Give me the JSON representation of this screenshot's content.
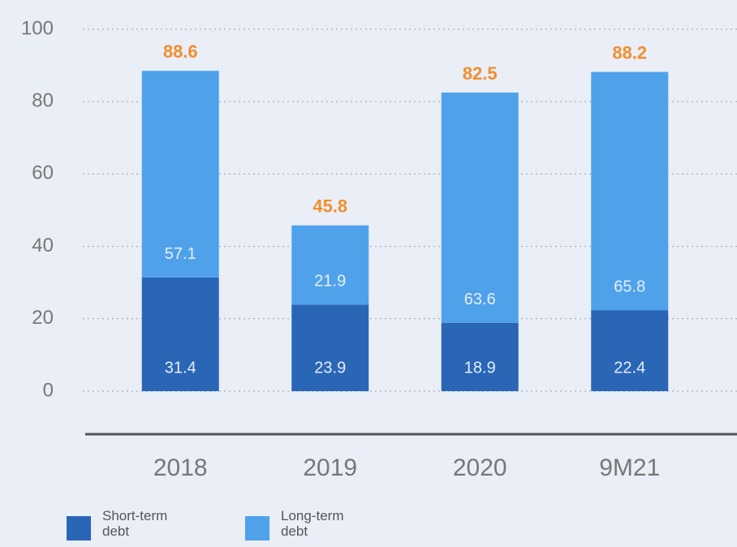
{
  "chart_data": {
    "type": "stacked_bar",
    "categories": [
      "2018",
      "2019",
      "2020",
      "9M21"
    ],
    "series": [
      {
        "name": "Short-term debt",
        "color": "#2a66b6",
        "values": [
          31.4,
          23.9,
          18.9,
          22.4
        ]
      },
      {
        "name": "Long-term debt",
        "color": "#4fa2ea",
        "values": [
          57.1,
          21.9,
          63.6,
          65.8
        ]
      }
    ],
    "totals": [
      88.6,
      45.8,
      82.5,
      88.2
    ],
    "ylim": [
      0,
      100
    ],
    "yticks": [
      0,
      20,
      40,
      60,
      80,
      100
    ],
    "grid": true
  }
}
